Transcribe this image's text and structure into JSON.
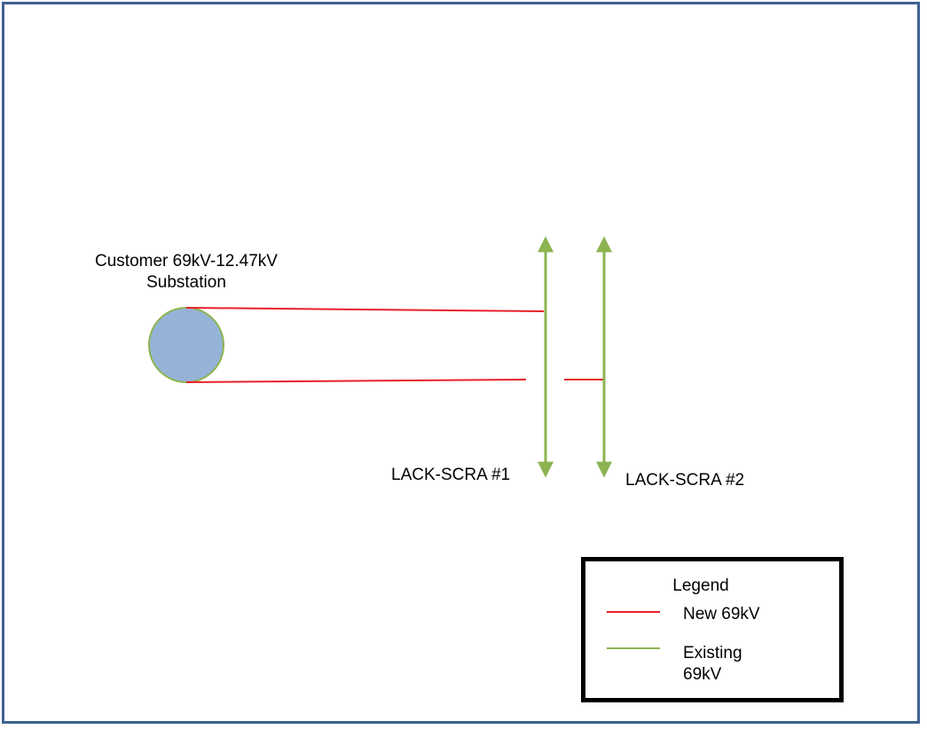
{
  "colors": {
    "frame": "#3f6190",
    "new_line": "#e8202a",
    "existing_line": "#8db351",
    "substation_fill": "#95b3d7",
    "substation_stroke": "#8db351"
  },
  "substation": {
    "label_line1": "Customer  69kV-12.47kV",
    "label_line2": "Substation"
  },
  "lines": {
    "line1_label": "LACK-SCRA  #1",
    "line2_label": "LACK-SCRA  #2"
  },
  "legend": {
    "title": "Legend",
    "new_label": "New  69kV",
    "existing_label": "Existing 69kV"
  }
}
